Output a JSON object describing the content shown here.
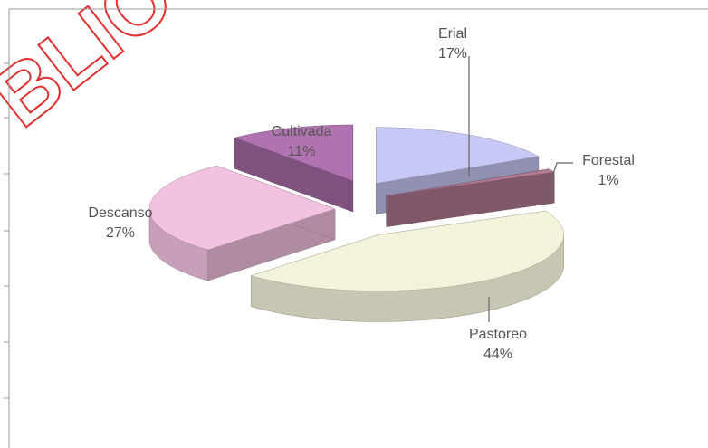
{
  "chart_data": {
    "type": "pie",
    "watermark": "BLIO",
    "categories": [
      "Erial",
      "Forestal",
      "Pastoreo",
      "Descanso",
      "Cultivada"
    ],
    "values": [
      17,
      1,
      44,
      27,
      11
    ],
    "value_labels": [
      "17%",
      "1%",
      "44%",
      "27%",
      "11%"
    ],
    "colors": [
      "#c8c8f6",
      "#b27a92",
      "#f3f2da",
      "#f3c2e0",
      "#b072b0"
    ]
  }
}
